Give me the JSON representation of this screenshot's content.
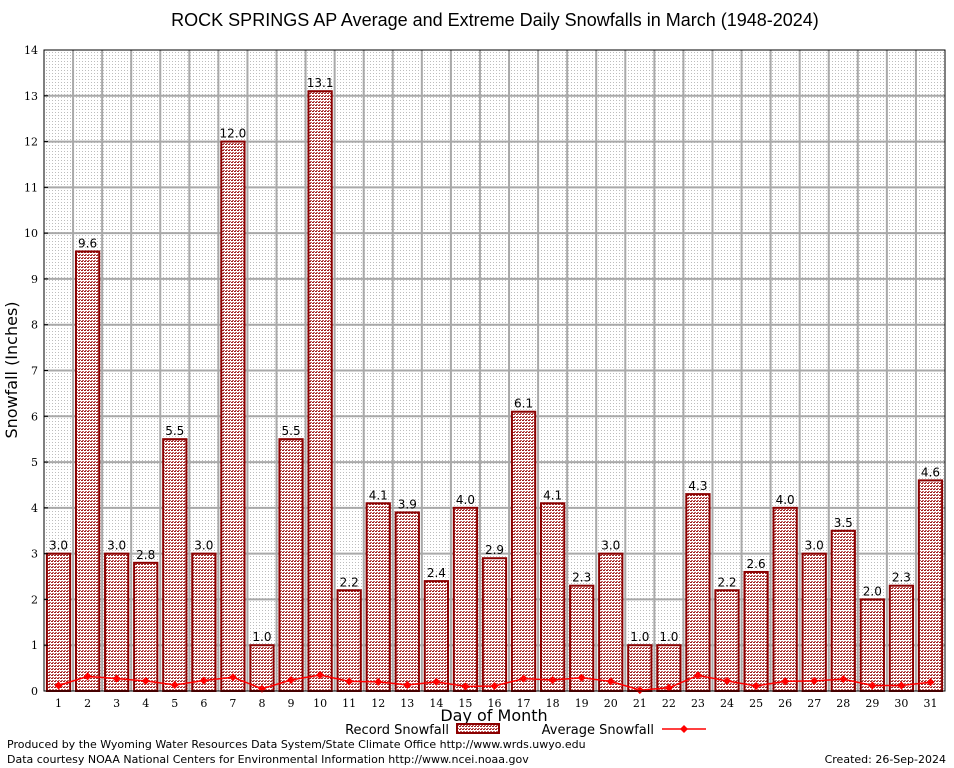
{
  "chart_data": {
    "type": "bar",
    "title": "ROCK SPRINGS AP Average and Extreme Daily Snowfalls in March (1948-2024)",
    "xlabel": "Day of Month",
    "ylabel": "Snowfall (Inches)",
    "ylim": [
      0,
      14
    ],
    "yticks": [
      "0",
      "1",
      "2",
      "3",
      "4",
      "5",
      "6",
      "7",
      "8",
      "9",
      "10",
      "11",
      "12",
      "13",
      "14"
    ],
    "categories": [
      "1",
      "2",
      "3",
      "4",
      "5",
      "6",
      "7",
      "8",
      "9",
      "10",
      "11",
      "12",
      "13",
      "14",
      "15",
      "16",
      "17",
      "18",
      "19",
      "20",
      "21",
      "22",
      "23",
      "24",
      "25",
      "26",
      "27",
      "28",
      "29",
      "30",
      "31"
    ],
    "grid": true,
    "legend_position": "bottom-center",
    "series": [
      {
        "name": "Record Snowfall",
        "kind": "bar",
        "values": [
          3.0,
          9.6,
          3.0,
          2.8,
          5.5,
          3.0,
          12.0,
          1.0,
          5.5,
          13.1,
          2.2,
          4.1,
          3.9,
          2.4,
          4.0,
          2.9,
          6.1,
          4.1,
          2.3,
          3.0,
          1.0,
          1.0,
          4.3,
          2.2,
          2.6,
          4.0,
          3.0,
          3.5,
          2.0,
          2.3,
          4.6
        ],
        "labels": [
          "3.0",
          "9.6",
          "3.0",
          "2.8",
          "5.5",
          "3.0",
          "12.0",
          "1.0",
          "5.5",
          "13.1",
          "2.2",
          "4.1",
          "3.9",
          "2.4",
          "4.0",
          "2.9",
          "6.1",
          "4.1",
          "2.3",
          "3.0",
          "1.0",
          "1.0",
          "4.3",
          "2.2",
          "2.6",
          "4.0",
          "3.0",
          "3.5",
          "2.0",
          "2.3",
          "4.6"
        ],
        "color": "#8b0000"
      },
      {
        "name": "Average Snowfall",
        "kind": "line",
        "values": [
          0.12,
          0.32,
          0.27,
          0.22,
          0.13,
          0.23,
          0.3,
          0.05,
          0.24,
          0.35,
          0.21,
          0.2,
          0.13,
          0.2,
          0.1,
          0.11,
          0.27,
          0.24,
          0.29,
          0.21,
          0.02,
          0.07,
          0.34,
          0.22,
          0.11,
          0.21,
          0.22,
          0.26,
          0.12,
          0.12,
          0.19
        ],
        "color": "#ff0000"
      }
    ]
  },
  "footer": {
    "credit1": "Produced by the Wyoming Water Resources Data System/State Climate Office http://www.wrds.uwyo.edu",
    "credit2": "Data courtesy NOAA National Centers for Environmental Information http://www.ncei.noaa.gov",
    "created": "Created:  26-Sep-2024"
  }
}
